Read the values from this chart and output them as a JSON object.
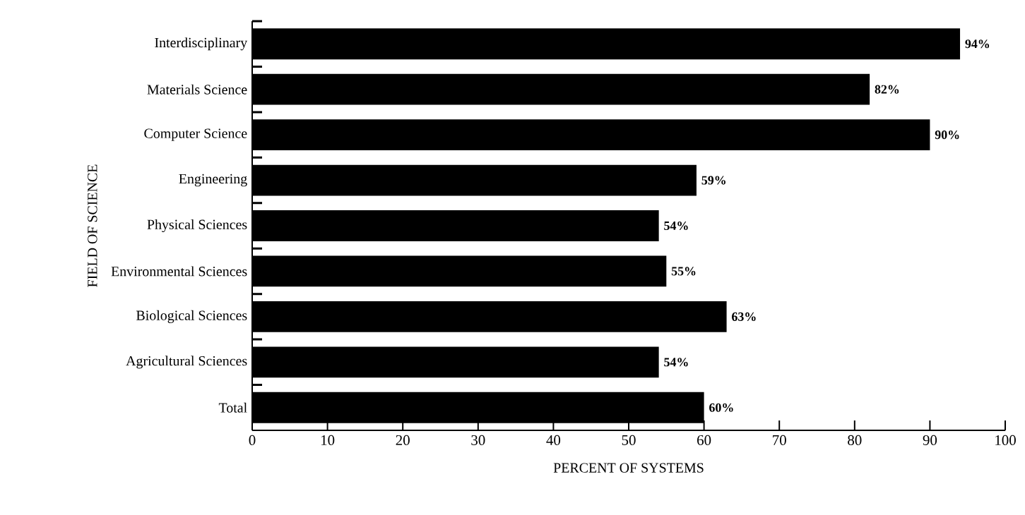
{
  "chart_data": {
    "type": "bar",
    "orientation": "horizontal",
    "categories": [
      "Interdisciplinary",
      "Materials Science",
      "Computer Science",
      "Engineering",
      "Physical Sciences",
      "Environmental Sciences",
      "Biological Sciences",
      "Agricultural Sciences",
      "Total"
    ],
    "values": [
      94,
      82,
      90,
      59,
      54,
      55,
      63,
      54,
      60
    ],
    "value_labels": [
      "94%",
      "82%",
      "90%",
      "59%",
      "54%",
      "55%",
      "63%",
      "54%",
      "60%"
    ],
    "color": "#000000",
    "xlim": [
      0,
      100
    ],
    "xticks": [
      0,
      10,
      20,
      30,
      40,
      50,
      60,
      70,
      80,
      90,
      100
    ],
    "xlabel": "PERCENT OF SYSTEMS",
    "ylabel": "FIELD OF SCIENCE"
  }
}
